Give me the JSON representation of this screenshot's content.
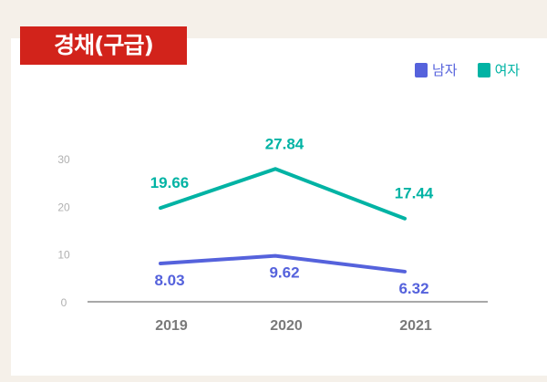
{
  "title": "경채(구급)",
  "chart_data": {
    "type": "line",
    "categories": [
      "2019",
      "2020",
      "2021"
    ],
    "series": [
      {
        "name": "남자",
        "color": "#5562dc",
        "values": [
          8.03,
          9.62,
          6.32
        ]
      },
      {
        "name": "여자",
        "color": "#00b3a4",
        "values": [
          19.66,
          27.84,
          17.44
        ]
      }
    ],
    "yticks": [
      "0",
      "10",
      "20",
      "30"
    ],
    "ylim": [
      0,
      30
    ],
    "grid": false,
    "legend": "top-right"
  }
}
